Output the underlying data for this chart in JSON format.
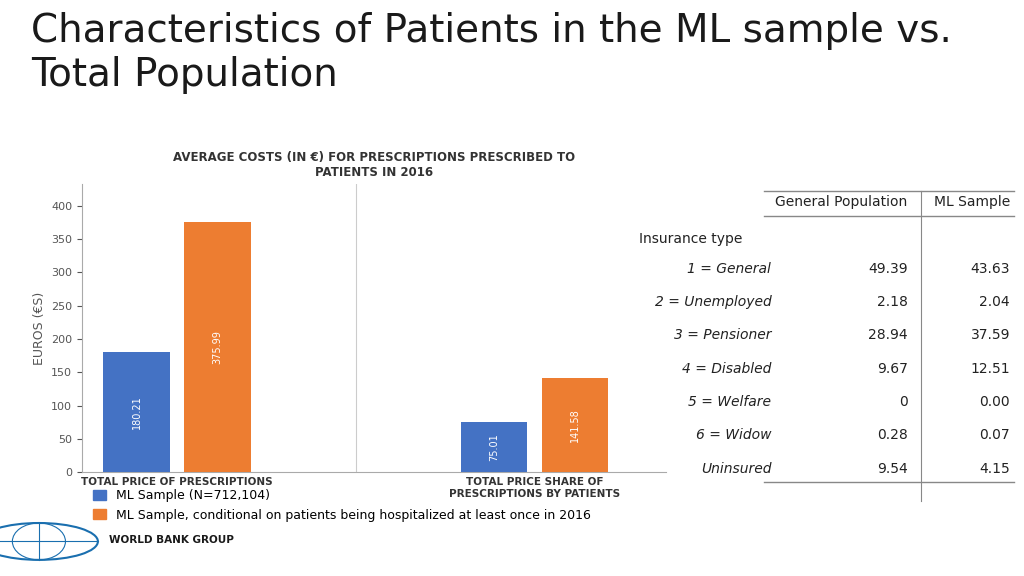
{
  "title": "Characteristics of Patients in the ML sample vs.\nTotal Population",
  "chart_title": "AVERAGE COSTS (IN €) FOR PRESCRIPTIONS PRESCRIBED TO\nPATIENTS IN 2016",
  "ylabel": "EUROS (€S)",
  "bar_groups": [
    "TOTAL PRICE OF PRESCRIPTIONS",
    "TOTAL PRICE SHARE OF\nPRESCRIPTIONS BY PATIENTS"
  ],
  "blue_values": [
    180.21,
    75.01
  ],
  "orange_values": [
    375.99,
    141.58
  ],
  "blue_color": "#4472C4",
  "orange_color": "#ED7D31",
  "legend1": "ML Sample (N=712,104)",
  "legend2": "ML Sample, conditional on patients being hospitalized at least once in 2016",
  "table_header": [
    "General Population",
    "ML Sample"
  ],
  "table_row_label": "Insurance type",
  "table_rows": [
    [
      "1 = General",
      "49.39",
      "43.63"
    ],
    [
      "2 = Unemployed",
      "2.18",
      "2.04"
    ],
    [
      "3 = Pensioner",
      "28.94",
      "37.59"
    ],
    [
      "4 = Disabled",
      "9.67",
      "12.51"
    ],
    [
      "5 = Welfare",
      "0",
      "0.00"
    ],
    [
      "6 = Widow",
      "0.28",
      "0.07"
    ],
    [
      "Uninsured",
      "9.54",
      "4.15"
    ]
  ],
  "background_color": "#FFFFFF",
  "title_fontsize": 28,
  "chart_title_fontsize": 8.5,
  "bar_label_fontsize": 7,
  "legend_fontsize": 9,
  "table_fontsize": 10,
  "ylabel_fontsize": 9
}
